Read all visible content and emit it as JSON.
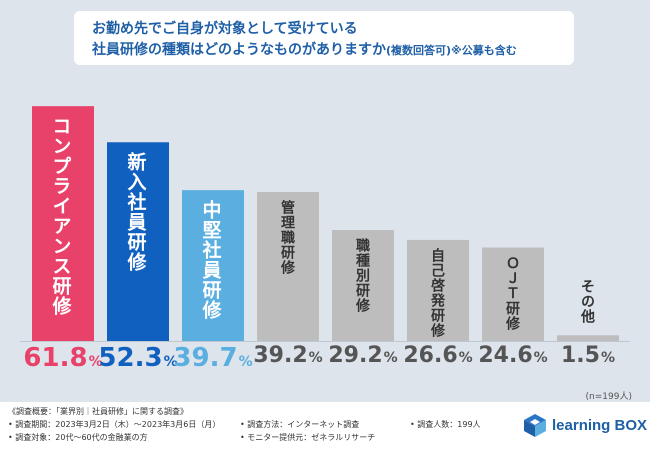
{
  "title": {
    "line1": "お勤め先でご自身が対象として受けている",
    "line2": "社員研修の種類はどのようなものがありますか",
    "line2_suffix": "(複数回答可)※公募も含む"
  },
  "sample_note": "(n=199人)",
  "chart_data": {
    "type": "bar",
    "categories": [
      "コンプライアンス研修",
      "新入社員研修",
      "中堅社員研修",
      "管理職研修",
      "職種別研修",
      "自己啓発研修",
      "ＯＪＴ研修",
      "その他"
    ],
    "values": [
      61.8,
      52.3,
      39.7,
      39.2,
      29.2,
      26.6,
      24.6,
      1.5
    ],
    "unit": "%",
    "ylim": [
      0,
      70
    ],
    "colors": [
      "#e8426a",
      "#1060bf",
      "#5aaee0",
      "#bdbdbd",
      "#bdbdbd",
      "#bdbdbd",
      "#bdbdbd",
      "#bdbdbd"
    ],
    "label_colors": [
      "#ffffff",
      "#ffffff",
      "#ffffff",
      "#333333",
      "#333333",
      "#333333",
      "#333333",
      "#333333"
    ],
    "pct_colors": [
      "#e8426a",
      "#1060bf",
      "#5aaee0",
      "#555555",
      "#555555",
      "#555555",
      "#555555",
      "#555555"
    ]
  },
  "footer": {
    "survey_title": "《調査概要：「業界別｜社員研修」に関する調査》",
    "period": "• 調査期間：2023年3月2日（木）〜2023年3月6日（月）",
    "target": "• 調査対象：20代〜60代の金融業の方",
    "method": "• 調査方法：インターネット調査",
    "monitor": "• モニター提供元：ゼネラルリサーチ",
    "count": "• 調査人数：199人"
  },
  "logo": {
    "text_main": "learning",
    "text_box": "BOX"
  }
}
